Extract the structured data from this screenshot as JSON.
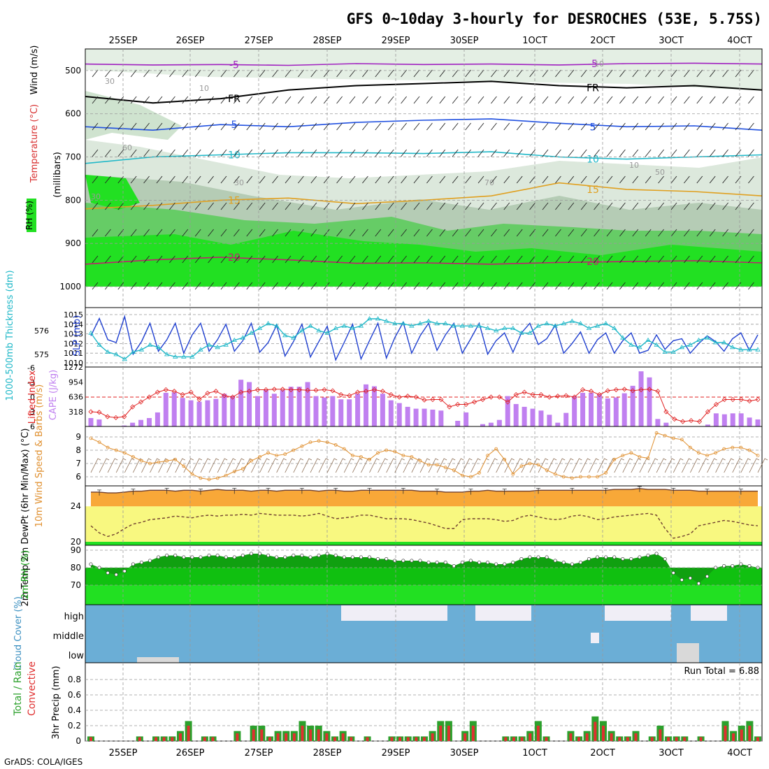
{
  "header": {
    "title": "GFS 0~10day 3-hourly for DESROCHES (53E, 5.75S)",
    "credit": "GrADS: COLA/IGES"
  },
  "chart_data": [
    {
      "type": "heatmap",
      "panel": "upper-air",
      "ylabel_left": "RH (%)",
      "ylabel_temp": "Temperature (°C)",
      "ylabel_wind": "Wind (m/s)",
      "ylabel_units": "(millibars)",
      "x_dates": [
        "25SEP",
        "26SEP",
        "27SEP",
        "28SEP",
        "29SEP",
        "30SEP",
        "1OCT",
        "2OCT",
        "3OCT",
        "4OCT"
      ],
      "y_ticks": [
        500,
        600,
        700,
        800,
        900,
        1000
      ],
      "ylim": [
        1000,
        450
      ],
      "isotherms": [
        {
          "label": "-5",
          "color": "#a020c0",
          "levels_mb": [
            485,
            487,
            486,
            488,
            484,
            486,
            485,
            487,
            484,
            483,
            485
          ]
        },
        {
          "label": "FR",
          "color": "#000000",
          "levels_mb": [
            560,
            575,
            565,
            545,
            535,
            530,
            525,
            535,
            540,
            535,
            545
          ]
        },
        {
          "label": "5",
          "color": "#2050e0",
          "levels_mb": [
            630,
            638,
            625,
            630,
            620,
            615,
            612,
            622,
            630,
            628,
            638
          ]
        },
        {
          "label": "10",
          "color": "#20b8c8",
          "levels_mb": [
            715,
            700,
            695,
            690,
            690,
            692,
            688,
            700,
            705,
            700,
            695
          ]
        },
        {
          "label": "15",
          "color": "#e0a020",
          "levels_mb": [
            820,
            812,
            800,
            795,
            808,
            800,
            790,
            760,
            775,
            780,
            790
          ]
        },
        {
          "label": "20",
          "color": "#c02070",
          "levels_mb": [
            948,
            938,
            932,
            938,
            946,
            945,
            948,
            944,
            942,
            940,
            945
          ]
        }
      ],
      "rh_labels": [
        "30",
        "10",
        "60",
        "30",
        "70",
        "50",
        "10",
        "30",
        "10"
      ]
    },
    {
      "type": "line",
      "panel": "thickness-slp",
      "ylabel_left": "1000-500mb Thickness (dm)",
      "ylabel_right": "SLP (mb)",
      "y_left_ticks": [
        575,
        576
      ],
      "y_right_ticks": [
        1010,
        1011,
        1012,
        1013,
        1014,
        1015
      ],
      "series": [
        {
          "name": "SLP (mb)",
          "color": "#2040d0",
          "values": [
            1012.8,
            1014.6,
            1012.4,
            1012.1,
            1014.8,
            1010.9,
            1012.2,
            1014.1,
            1011.2,
            1012.4,
            1014.1,
            1011.0,
            1012.9,
            1014.1,
            1011.2,
            1012.4,
            1014.0,
            1011.2,
            1012.3,
            1014.1,
            1011.1,
            1012.1,
            1013.9,
            1010.7,
            1012.2,
            1014.0,
            1010.6,
            1012.2,
            1013.8,
            1010.3,
            1012.1,
            1014.0,
            1010.4,
            1012.3,
            1014.1,
            1010.5,
            1012.6,
            1014.2,
            1011.0,
            1012.8,
            1014.1,
            1011.3,
            1012.9,
            1014.1,
            1011.0,
            1012.5,
            1014.1,
            1010.9,
            1012.3,
            1013.1,
            1011.1,
            1013.1,
            1014.1,
            1011.9,
            1012.5,
            1013.9,
            1011.0,
            1012.0,
            1013.2,
            1011.0,
            1012.4,
            1013.1,
            1011.0,
            1012.3,
            1013.1,
            1011.0,
            1011.3,
            1012.9,
            1011.4,
            1012.3,
            1012.5,
            1011.0,
            1012.0,
            1012.8,
            1012.2,
            1011.2,
            1012.5,
            1013.1,
            1011.3,
            1012.9
          ]
        },
        {
          "name": "Thickness (dm)",
          "color": "#20b8c8",
          "values": [
            575.9,
            575.4,
            575.1,
            575.0,
            574.8,
            575.1,
            575.2,
            575.4,
            575.3,
            575.0,
            574.9,
            574.9,
            574.9,
            575.2,
            575.4,
            575.3,
            575.4,
            575.6,
            575.7,
            575.9,
            576.1,
            576.3,
            576.2,
            575.8,
            575.7,
            576.0,
            576.2,
            576.0,
            575.9,
            576.1,
            576.2,
            576.1,
            576.2,
            576.5,
            576.5,
            576.4,
            576.3,
            576.3,
            576.2,
            576.3,
            576.4,
            576.3,
            576.3,
            576.2,
            576.2,
            576.2,
            576.2,
            576.1,
            576.0,
            576.1,
            576.1,
            575.9,
            575.9,
            576.2,
            576.3,
            576.2,
            576.3,
            576.4,
            576.3,
            576.1,
            576.2,
            576.3,
            576.1,
            575.7,
            575.4,
            575.3,
            575.6,
            575.4,
            575.1,
            575.1,
            575.3,
            575.4,
            575.6,
            575.7,
            575.5,
            575.5,
            575.3,
            575.2,
            575.2,
            575.2
          ]
        }
      ]
    },
    {
      "type": "bar",
      "panel": "cape-li",
      "ylabel_left": "Lifted Index",
      "ylabel_right": "CAPE (J/kg)",
      "y_left_ticks": [
        "-6",
        "-3",
        "0",
        "3",
        "6"
      ],
      "y_right_ticks": [
        318,
        636,
        954,
        1272
      ],
      "series": [
        {
          "name": "CAPE (J/kg)",
          "color": "#c080f0",
          "values": [
            180,
            150,
            0,
            0,
            20,
            80,
            140,
            180,
            300,
            720,
            730,
            610,
            560,
            530,
            560,
            590,
            700,
            650,
            1000,
            950,
            650,
            780,
            700,
            780,
            850,
            850,
            950,
            650,
            620,
            650,
            580,
            580,
            700,
            900,
            860,
            700,
            560,
            500,
            420,
            380,
            380,
            360,
            340,
            0,
            120,
            300,
            0,
            50,
            80,
            140,
            650,
            480,
            420,
            380,
            340,
            250,
            80,
            290,
            650,
            720,
            720,
            680,
            600,
            620,
            710,
            870,
            1180,
            1050,
            160,
            80,
            0,
            0,
            0,
            0,
            40,
            280,
            260,
            280,
            280,
            190,
            150
          ]
        },
        {
          "name": "Lifted Index",
          "color": "#e02020",
          "values": [
            3.0,
            3.1,
            4.0,
            4.2,
            4.0,
            2.0,
            1.0,
            0.0,
            -1.0,
            -1.5,
            -1.2,
            -0.5,
            -1.0,
            0.5,
            -0.8,
            -1.2,
            -0.3,
            0.0,
            -1.0,
            -1.2,
            -1.5,
            -1.5,
            -1.6,
            -1.6,
            -1.5,
            -1.5,
            -1.4,
            -1.4,
            -1.5,
            -1.3,
            -0.5,
            -0.3,
            -1.0,
            -1.2,
            -1.5,
            -1.2,
            -0.5,
            0.0,
            -0.2,
            0.0,
            0.6,
            0.5,
            0.5,
            2.0,
            1.5,
            1.5,
            1.0,
            0.5,
            0.0,
            0.0,
            1.0,
            -0.5,
            -1.0,
            -0.5,
            -0.5,
            0.0,
            -0.2,
            -0.3,
            0.0,
            -1.5,
            -1.2,
            -0.5,
            -1.3,
            -1.5,
            -1.6,
            -1.3,
            -1.5,
            -1.6,
            -1.2,
            3.0,
            4.5,
            5.0,
            4.8,
            5.0,
            3.0,
            1.5,
            0.5,
            0.5,
            0.5,
            0.8,
            0.5
          ]
        }
      ]
    },
    {
      "type": "line",
      "panel": "wind10m",
      "ylabel": "10m Wind Speed & Barbs (m/s)",
      "y_ticks": [
        6,
        7,
        8,
        9
      ],
      "series": [
        {
          "name": "10m Wind Speed",
          "color": "#e09030",
          "values": [
            8.9,
            8.6,
            8.2,
            8.0,
            7.8,
            7.5,
            7.2,
            7.0,
            7.1,
            7.2,
            7.3,
            6.8,
            6.2,
            5.9,
            5.8,
            5.9,
            6.1,
            6.4,
            6.6,
            7.2,
            7.5,
            7.8,
            7.6,
            7.7,
            8.0,
            8.3,
            8.6,
            8.7,
            8.6,
            8.4,
            8.1,
            7.6,
            7.5,
            7.3,
            7.8,
            8.0,
            7.9,
            7.6,
            7.5,
            7.2,
            6.9,
            6.9,
            6.7,
            6.5,
            6.1,
            6.0,
            6.3,
            7.6,
            8.1,
            7.3,
            6.2,
            6.8,
            7.0,
            6.9,
            6.5,
            6.2,
            6.0,
            5.9,
            6.0,
            6.0,
            6.0,
            6.3,
            7.3,
            7.6,
            7.8,
            7.5,
            7.4,
            9.3,
            9.1,
            8.9,
            8.8,
            8.2,
            7.8,
            7.6,
            7.8,
            8.1,
            8.2,
            8.2,
            8.0,
            7.6
          ]
        }
      ]
    },
    {
      "type": "area",
      "panel": "temp2m",
      "ylabel": "2m Temp 2m DewPt (6hr Min/Max) (°C)",
      "y_ticks": [
        20,
        24
      ],
      "series": [
        {
          "name": "2m Temp",
          "color": "#f8a838",
          "values": [
            25.6,
            25.6,
            25.5,
            25.5,
            25.6,
            25.7,
            25.7,
            25.8,
            25.8,
            25.8,
            25.7,
            25.8,
            25.8,
            25.7,
            25.8,
            25.9,
            25.8,
            25.8,
            25.8,
            25.7,
            25.8,
            25.8,
            25.7,
            25.8,
            25.8,
            25.8,
            25.8,
            25.7,
            25.8,
            25.8,
            25.7,
            25.7,
            25.8,
            25.8,
            25.8,
            25.8,
            25.8,
            25.8,
            25.8,
            25.7,
            25.7,
            25.7,
            25.6,
            25.6,
            25.6,
            25.7,
            25.7,
            25.8,
            25.7,
            25.7,
            25.7,
            25.7,
            25.7,
            25.8,
            25.8,
            25.8,
            25.8,
            25.8,
            25.8,
            25.8,
            25.8,
            25.8,
            25.9,
            25.9,
            25.9,
            26.0,
            25.9,
            25.9,
            25.9,
            25.8,
            25.8,
            25.8,
            25.7,
            25.7,
            25.7,
            25.7,
            25.7,
            25.7,
            25.7,
            25.7
          ]
        },
        {
          "name": "2m DewPt",
          "color": "#704030",
          "values": [
            21.8,
            21.0,
            20.6,
            20.9,
            21.5,
            22.0,
            22.2,
            22.5,
            22.6,
            22.7,
            22.9,
            22.8,
            22.7,
            22.9,
            23.0,
            22.9,
            23.0,
            23.0,
            23.1,
            23.0,
            23.2,
            23.1,
            23.0,
            23.0,
            23.0,
            22.9,
            23.0,
            23.2,
            22.9,
            22.6,
            22.7,
            22.8,
            23.0,
            23.0,
            22.8,
            22.6,
            22.6,
            22.6,
            22.5,
            22.3,
            22.1,
            21.8,
            21.5,
            21.5,
            22.5,
            22.6,
            22.6,
            22.6,
            22.5,
            22.3,
            22.4,
            22.8,
            23.0,
            22.8,
            22.6,
            22.5,
            22.6,
            22.9,
            23.0,
            22.8,
            22.5,
            22.6,
            22.8,
            22.9,
            23.0,
            23.1,
            23.2,
            23.0,
            21.5,
            20.4,
            20.6,
            20.9,
            21.8,
            22.0,
            22.2,
            22.4,
            22.3,
            22.1,
            21.9,
            21.8
          ]
        }
      ]
    },
    {
      "type": "area",
      "panel": "rh2m",
      "ylabel": "2m RH (%)",
      "y_ticks": [
        70,
        80,
        90
      ],
      "series": [
        {
          "name": "2m RH",
          "color": "#10a010",
          "values": [
            82,
            80,
            77,
            76,
            78,
            82,
            83,
            84,
            86,
            87,
            87,
            86,
            86,
            86,
            87,
            87,
            86,
            86,
            87,
            88,
            88,
            87,
            86,
            86,
            87,
            87,
            86,
            87,
            88,
            87,
            86,
            86,
            86,
            86,
            85,
            85,
            84,
            84,
            84,
            84,
            83,
            83,
            83,
            81,
            83,
            84,
            83,
            83,
            82,
            82,
            83,
            85,
            86,
            86,
            86,
            84,
            83,
            82,
            83,
            85,
            86,
            86,
            86,
            85,
            85,
            86,
            87,
            88,
            85,
            77,
            73,
            74,
            71,
            75,
            80,
            81,
            81,
            82,
            81,
            80
          ]
        }
      ]
    },
    {
      "type": "bar",
      "panel": "cloud",
      "ylabel": "Cloud Cover (%)",
      "levels": [
        "high",
        "middle",
        "low"
      ]
    },
    {
      "type": "bar",
      "panel": "precip",
      "ylabel": "3hr Precip (mm)",
      "ylabel_total": "Total / Rain",
      "ylabel_conv": "Convective",
      "run_total": "Run Total = 6.88",
      "y_ticks": [
        "0",
        "0.2",
        "0.4",
        "0.6",
        "0.8"
      ],
      "series": [
        {
          "name": "Total",
          "color": "#2ca02c",
          "values": [
            0.06,
            0,
            0,
            0,
            0,
            0,
            0.06,
            0,
            0.06,
            0.06,
            0.06,
            0.13,
            0.26,
            0,
            0.06,
            0.06,
            0,
            0,
            0.13,
            0,
            0.2,
            0.2,
            0.06,
            0.13,
            0.13,
            0.13,
            0.26,
            0.2,
            0.2,
            0.13,
            0.06,
            0.13,
            0.06,
            0,
            0.06,
            0,
            0,
            0.06,
            0.06,
            0.06,
            0.06,
            0.06,
            0.13,
            0.26,
            0.26,
            0,
            0.13,
            0.26,
            0,
            0,
            0,
            0.06,
            0.06,
            0.06,
            0.13,
            0.26,
            0.06,
            0,
            0,
            0.13,
            0.06,
            0.13,
            0.32,
            0.26,
            0.13,
            0.06,
            0.06,
            0.13,
            0,
            0.06,
            0.2,
            0.06,
            0.06,
            0.06,
            0,
            0.06,
            0,
            0,
            0.26,
            0.13,
            0.2,
            0.26,
            0.06
          ]
        },
        {
          "name": "Convective",
          "color": "#e03030",
          "values": [
            0.05,
            0,
            0,
            0,
            0,
            0,
            0.05,
            0,
            0.05,
            0.05,
            0.05,
            0.1,
            0.2,
            0,
            0.05,
            0.05,
            0,
            0,
            0.1,
            0,
            0.15,
            0.15,
            0.05,
            0.1,
            0.1,
            0.1,
            0.2,
            0.15,
            0.15,
            0.1,
            0.05,
            0.1,
            0.05,
            0,
            0.05,
            0,
            0,
            0.05,
            0.05,
            0.05,
            0.05,
            0.05,
            0.1,
            0.2,
            0.2,
            0,
            0.1,
            0.2,
            0,
            0,
            0,
            0.05,
            0.05,
            0.05,
            0.1,
            0.2,
            0.05,
            0,
            0,
            0.1,
            0.05,
            0.1,
            0.25,
            0.2,
            0.1,
            0.05,
            0.05,
            0.1,
            0,
            0.05,
            0.15,
            0.05,
            0.05,
            0.05,
            0,
            0.05,
            0,
            0,
            0.2,
            0.1,
            0.15,
            0.2,
            0.05
          ]
        }
      ]
    }
  ]
}
